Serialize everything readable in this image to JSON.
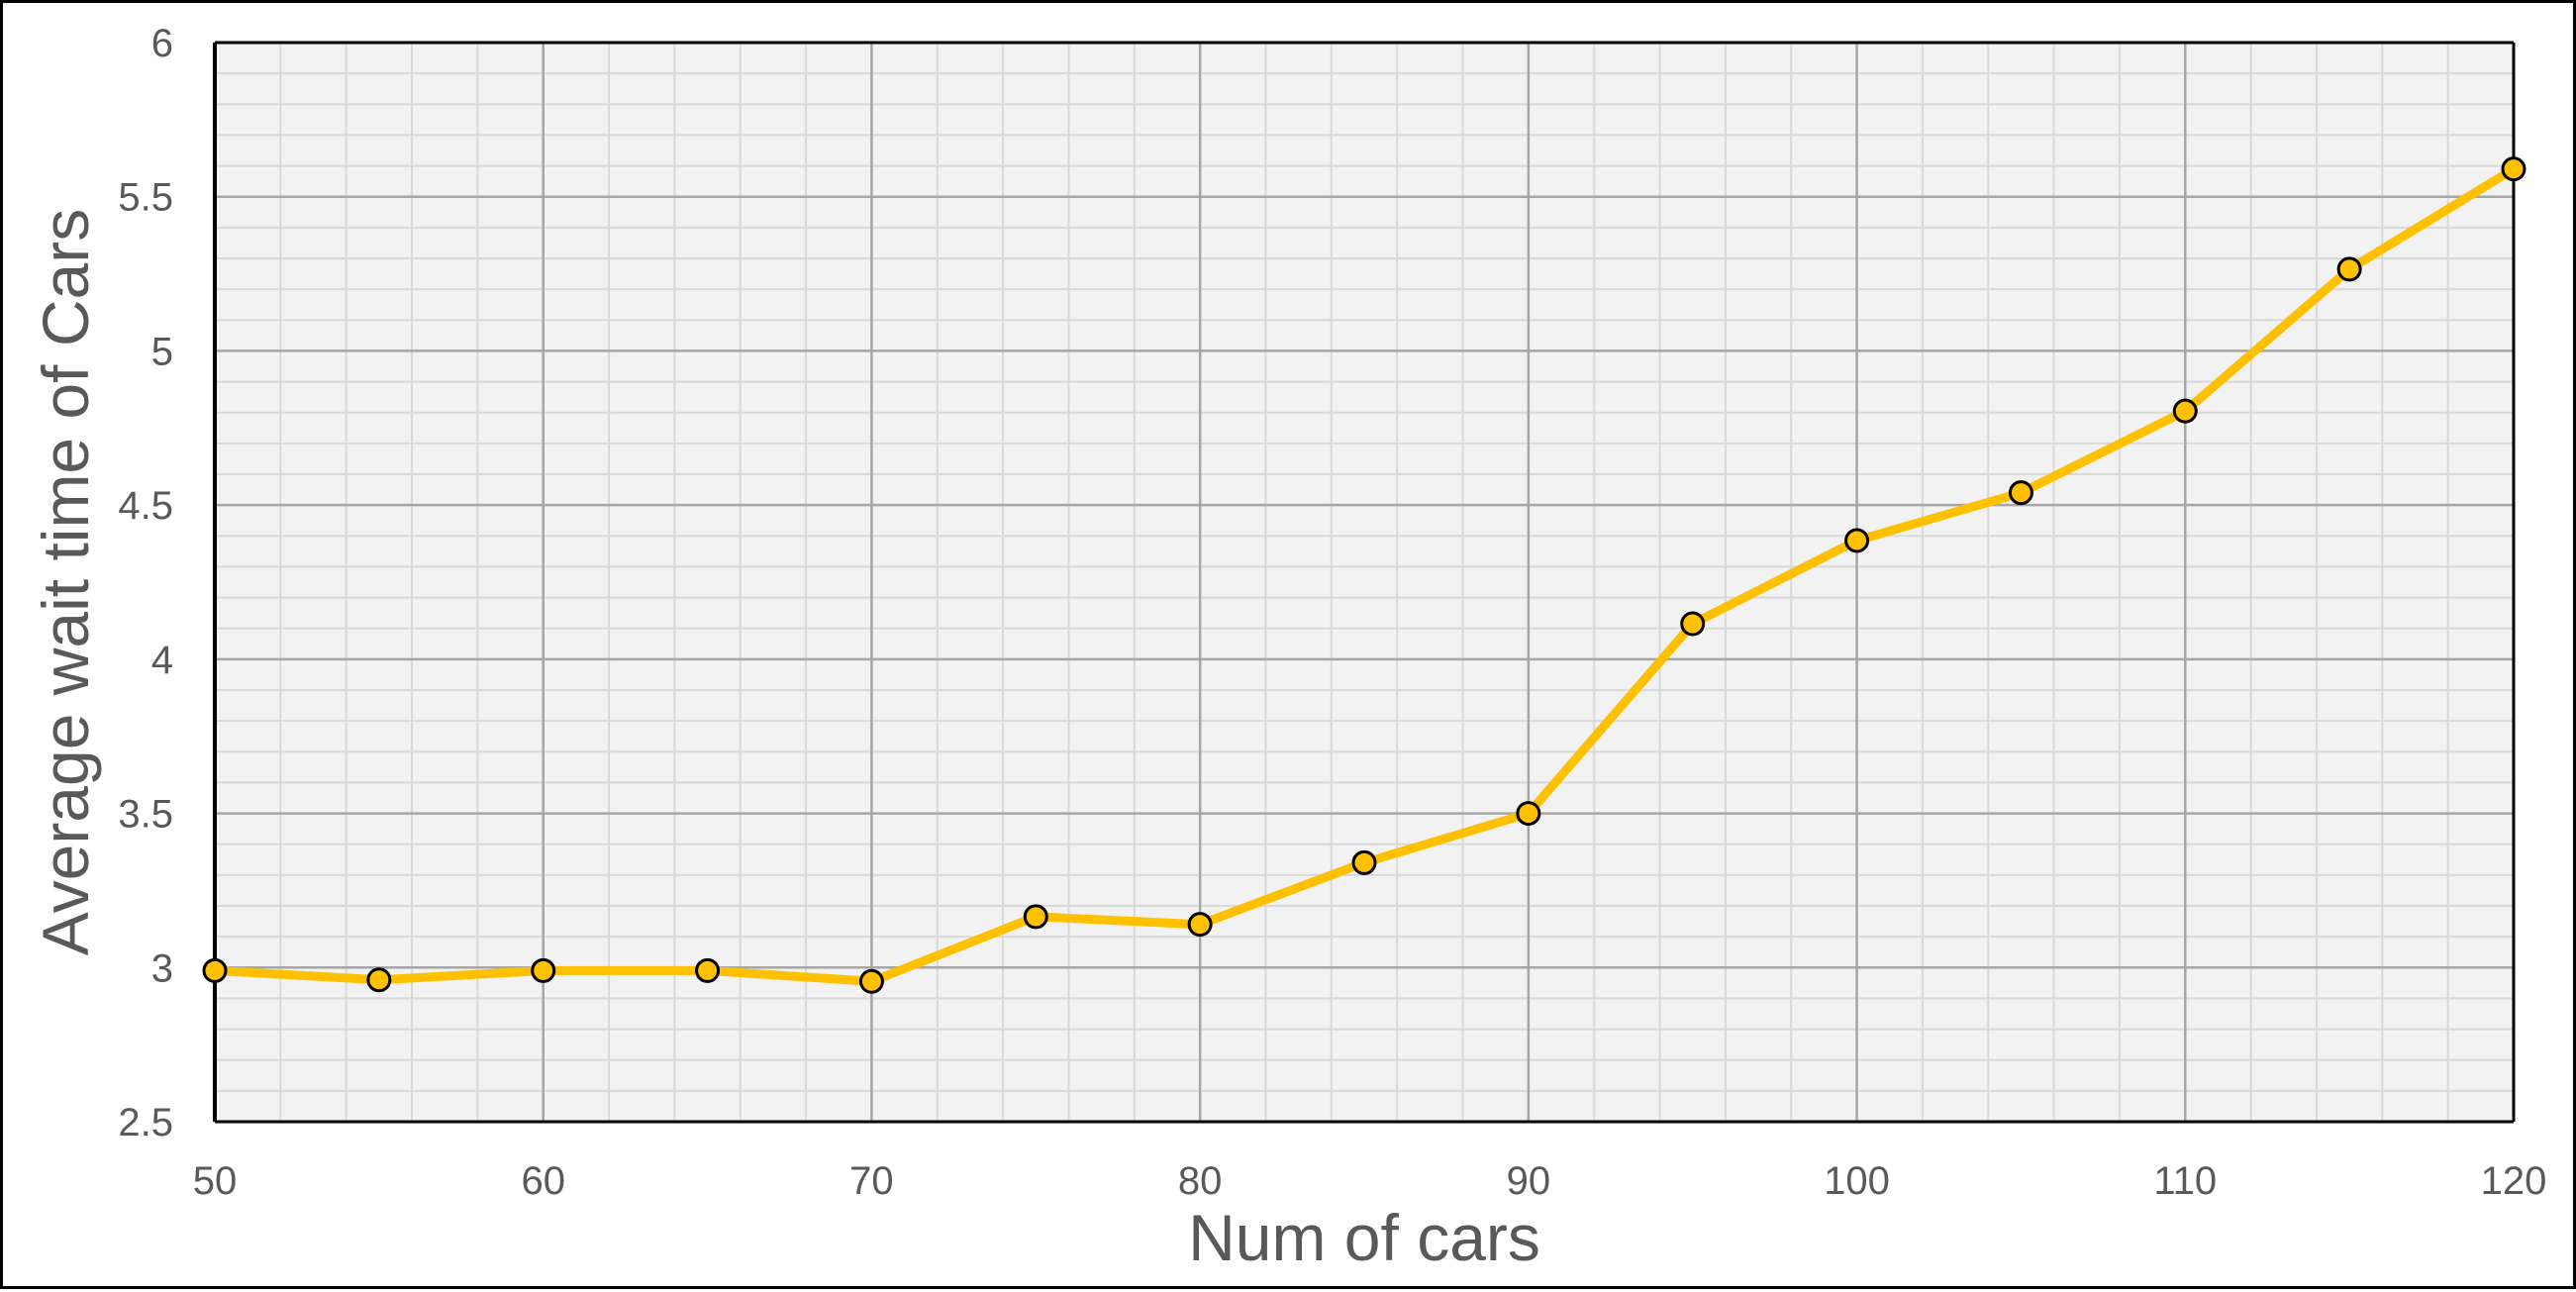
{
  "chart_data": {
    "type": "line",
    "xlabel": "Num of cars",
    "ylabel": "Average wait time of Cars",
    "xlim": [
      50,
      120
    ],
    "ylim": [
      2.5,
      6
    ],
    "x_major_step": 10,
    "x_minor_step": 2,
    "y_major_step": 0.5,
    "y_minor_step": 0.1,
    "grid": true,
    "x_ticks": [
      "50",
      "60",
      "70",
      "80",
      "90",
      "100",
      "110",
      "120"
    ],
    "y_ticks": [
      "2.5",
      "3",
      "3.5",
      "4",
      "4.5",
      "5",
      "5.5",
      "6"
    ],
    "series": [
      {
        "x": [
          50,
          55,
          60,
          65,
          70,
          75,
          80,
          85,
          90,
          95,
          100,
          105,
          110,
          115,
          120
        ],
        "y": [
          2.99,
          2.96,
          2.99,
          2.99,
          2.955,
          3.165,
          3.14,
          3.34,
          3.5,
          4.115,
          4.385,
          4.54,
          4.805,
          5.265,
          5.59
        ]
      }
    ],
    "colors": {
      "line": "#FFC000",
      "marker_fill": "#FFC000",
      "marker_edge": "#000000",
      "plot_background": "#F2F2F2",
      "major_grid": "#A6A6A6",
      "minor_grid": "#D9D9D9",
      "axis": "#000000"
    }
  }
}
